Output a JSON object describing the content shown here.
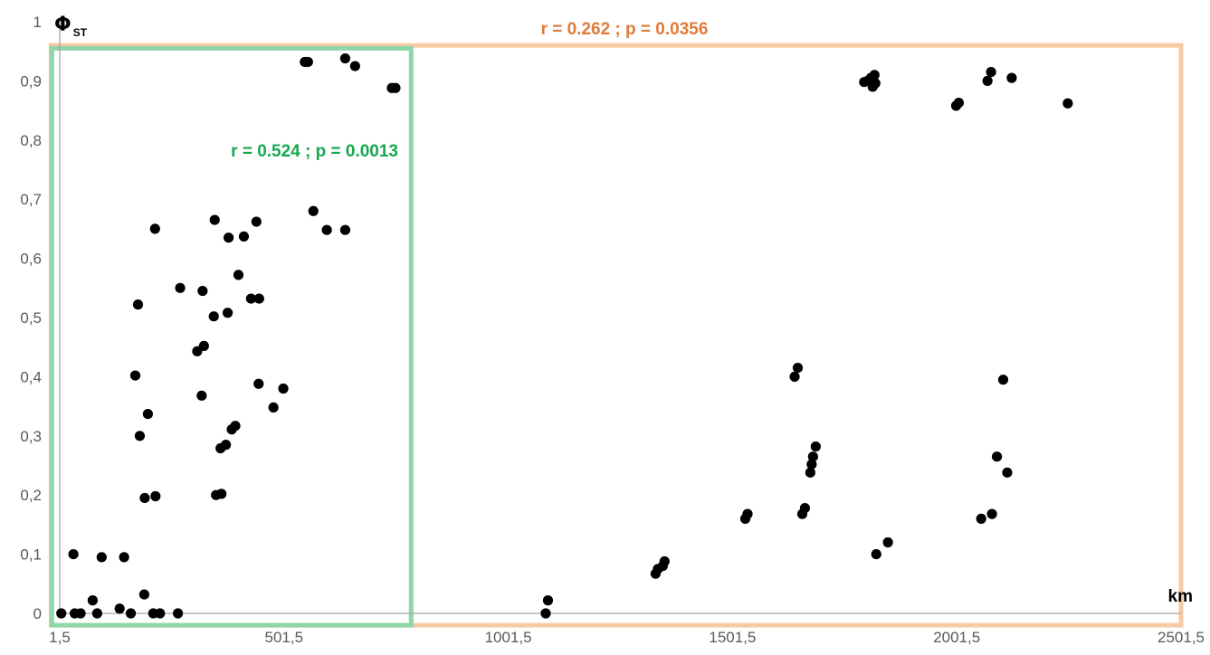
{
  "chart_data": {
    "type": "scatter",
    "title": "",
    "ylabel": {
      "main": "Φ",
      "sub": "ST"
    },
    "xlabel": "km",
    "xlim": [
      1.5,
      2501.5
    ],
    "ylim": [
      0,
      1
    ],
    "x_ticks": [
      1.5,
      501.5,
      1001.5,
      1501.5,
      2001.5,
      2501.5
    ],
    "x_tick_labels": [
      "1,5",
      "501,5",
      "1001,5",
      "1501,5",
      "2001,5",
      "2501,5"
    ],
    "y_ticks": [
      0,
      0.1,
      0.2,
      0.3,
      0.4,
      0.5,
      0.6,
      0.7,
      0.8,
      0.9,
      1
    ],
    "y_tick_labels": [
      "0",
      "0,1",
      "0,2",
      "0,3",
      "0,4",
      "0,5",
      "0,6",
      "0,7",
      "0,8",
      "0,9",
      "1"
    ],
    "grid": false,
    "marker_color": "#000000",
    "annotations": [
      {
        "text": "r = 0.262 ; p = 0.0356",
        "color": "#e07b39",
        "box_color": "#f7caa4",
        "x_range": [
          -18,
          2501.5
        ],
        "y_range": [
          -0.02,
          0.96
        ]
      },
      {
        "text": "r = 0.524 ; p = 0.0013",
        "color": "#17a84f",
        "box_color": "#8fd6aa",
        "x_range": [
          -16,
          785
        ],
        "y_range": [
          -0.02,
          0.955
        ]
      }
    ],
    "points": [
      [
        5,
        0
      ],
      [
        35,
        0
      ],
      [
        48,
        0
      ],
      [
        85,
        0
      ],
      [
        160,
        0
      ],
      [
        210,
        0
      ],
      [
        225,
        0
      ],
      [
        265,
        0
      ],
      [
        32,
        0.1
      ],
      [
        75,
        0.022
      ],
      [
        95,
        0.095
      ],
      [
        135,
        0.008
      ],
      [
        145,
        0.095
      ],
      [
        190,
        0.032
      ],
      [
        191,
        0.195
      ],
      [
        215,
        0.198
      ],
      [
        180,
        0.3
      ],
      [
        198,
        0.337
      ],
      [
        170,
        0.402
      ],
      [
        176,
        0.522
      ],
      [
        214,
        0.65
      ],
      [
        270,
        0.55
      ],
      [
        308,
        0.443
      ],
      [
        320,
        0.545
      ],
      [
        323,
        0.452
      ],
      [
        318,
        0.368
      ],
      [
        345,
        0.502
      ],
      [
        347,
        0.665
      ],
      [
        350,
        0.2
      ],
      [
        362,
        0.202
      ],
      [
        360,
        0.279
      ],
      [
        372,
        0.285
      ],
      [
        376,
        0.508
      ],
      [
        378,
        0.635
      ],
      [
        385,
        0.311
      ],
      [
        393,
        0.317
      ],
      [
        400,
        0.572
      ],
      [
        412,
        0.637
      ],
      [
        428,
        0.532
      ],
      [
        440,
        0.662
      ],
      [
        446,
        0.532
      ],
      [
        445,
        0.388
      ],
      [
        478,
        0.348
      ],
      [
        500,
        0.38
      ],
      [
        548,
        0.932
      ],
      [
        555,
        0.932
      ],
      [
        567,
        0.68
      ],
      [
        597,
        0.648
      ],
      [
        638,
        0.648
      ],
      [
        638,
        0.938
      ],
      [
        660,
        0.925
      ],
      [
        742,
        0.888
      ],
      [
        750,
        0.888
      ],
      [
        1085,
        0
      ],
      [
        1090,
        0.022
      ],
      [
        1330,
        0.067
      ],
      [
        1335,
        0.075
      ],
      [
        1346,
        0.08
      ],
      [
        1350,
        0.088
      ],
      [
        1530,
        0.16
      ],
      [
        1535,
        0.168
      ],
      [
        1640,
        0.4
      ],
      [
        1647,
        0.415
      ],
      [
        1657,
        0.168
      ],
      [
        1663,
        0.178
      ],
      [
        1675,
        0.238
      ],
      [
        1678,
        0.252
      ],
      [
        1681,
        0.265
      ],
      [
        1687,
        0.282
      ],
      [
        1795,
        0.898
      ],
      [
        1803,
        0.9
      ],
      [
        1810,
        0.905
      ],
      [
        1814,
        0.89
      ],
      [
        1818,
        0.91
      ],
      [
        1820,
        0.896
      ],
      [
        1822,
        0.1
      ],
      [
        1848,
        0.12
      ],
      [
        2000,
        0.858
      ],
      [
        2006,
        0.863
      ],
      [
        2056,
        0.16
      ],
      [
        2070,
        0.9
      ],
      [
        2078,
        0.915
      ],
      [
        2080,
        0.168
      ],
      [
        2091,
        0.265
      ],
      [
        2105,
        0.395
      ],
      [
        2114,
        0.238
      ],
      [
        2124,
        0.905
      ],
      [
        2249,
        0.862
      ]
    ]
  }
}
